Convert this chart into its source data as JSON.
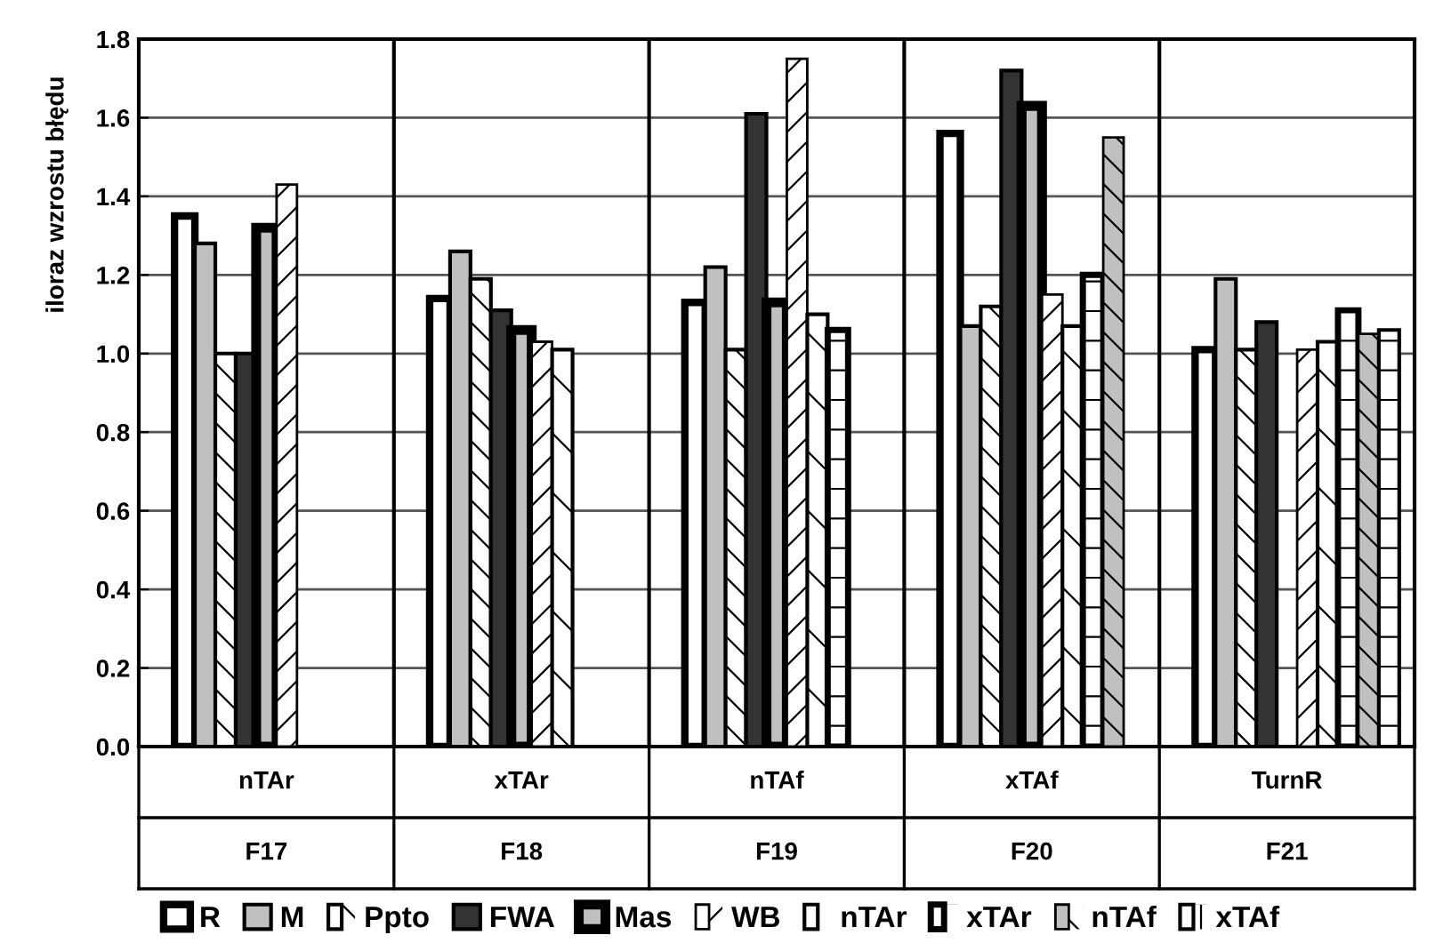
{
  "chart_data": {
    "type": "bar",
    "ylabel": "iloraz wzrostu błędu",
    "categories": [
      "nTAr\nF17",
      "xTAr\nF18",
      "nTAf\nF19",
      "xTAf\nF20",
      "TurnR\nF21"
    ],
    "series": [
      {
        "name": "R",
        "color": "#ffffff",
        "values": [
          1.35,
          1.14,
          1.13,
          1.56,
          1.01
        ]
      },
      {
        "name": "M",
        "color": "#c0c0c0",
        "values": [
          1.28,
          1.26,
          1.22,
          1.07,
          1.19
        ]
      },
      {
        "name": "Ppto",
        "color": "#ffffff",
        "values": [
          1.0,
          1.19,
          1.01,
          1.12,
          1.01
        ]
      },
      {
        "name": "FWA",
        "color": "#333333",
        "values": [
          1.0,
          1.11,
          1.61,
          1.72,
          1.08
        ]
      },
      {
        "name": "Mas",
        "color": "#c0c0c0",
        "values": [
          1.32,
          1.06,
          1.13,
          1.63,
          null
        ]
      },
      {
        "name": "WB",
        "color": "#ffffff",
        "values": [
          1.43,
          1.03,
          1.75,
          1.15,
          1.01
        ]
      },
      {
        "name": "nTAr",
        "color": "#ffffff",
        "values": [
          null,
          1.01,
          1.1,
          1.07,
          1.03
        ]
      },
      {
        "name": "xTAr",
        "color": "#ffffff",
        "values": [
          null,
          null,
          1.06,
          1.2,
          1.11
        ]
      },
      {
        "name": "nTAf",
        "color": "#c0c0c0",
        "values": [
          null,
          null,
          null,
          1.55,
          1.05
        ]
      },
      {
        "name": "xTAf",
        "color": "#ffffff",
        "values": [
          null,
          null,
          null,
          null,
          1.06
        ]
      }
    ],
    "ylim": [
      0,
      1.8
    ],
    "yticks": [
      {
        "value": 0,
        "label": "0.0"
      },
      {
        "value": 0.2,
        "label": "0.2"
      },
      {
        "value": 0.4,
        "label": "0.4"
      },
      {
        "value": 0.6,
        "label": "0.6"
      },
      {
        "value": 0.8,
        "label": "0.8"
      },
      {
        "value": 1.0,
        "label": "1.0"
      },
      {
        "value": 1.2,
        "label": "1.2"
      },
      {
        "value": 1.4,
        "label": "1.4"
      },
      {
        "value": 1.6,
        "label": "1.6"
      },
      {
        "value": 1.8,
        "label": "1.8"
      }
    ],
    "grid": "y",
    "legend": "bottom"
  }
}
